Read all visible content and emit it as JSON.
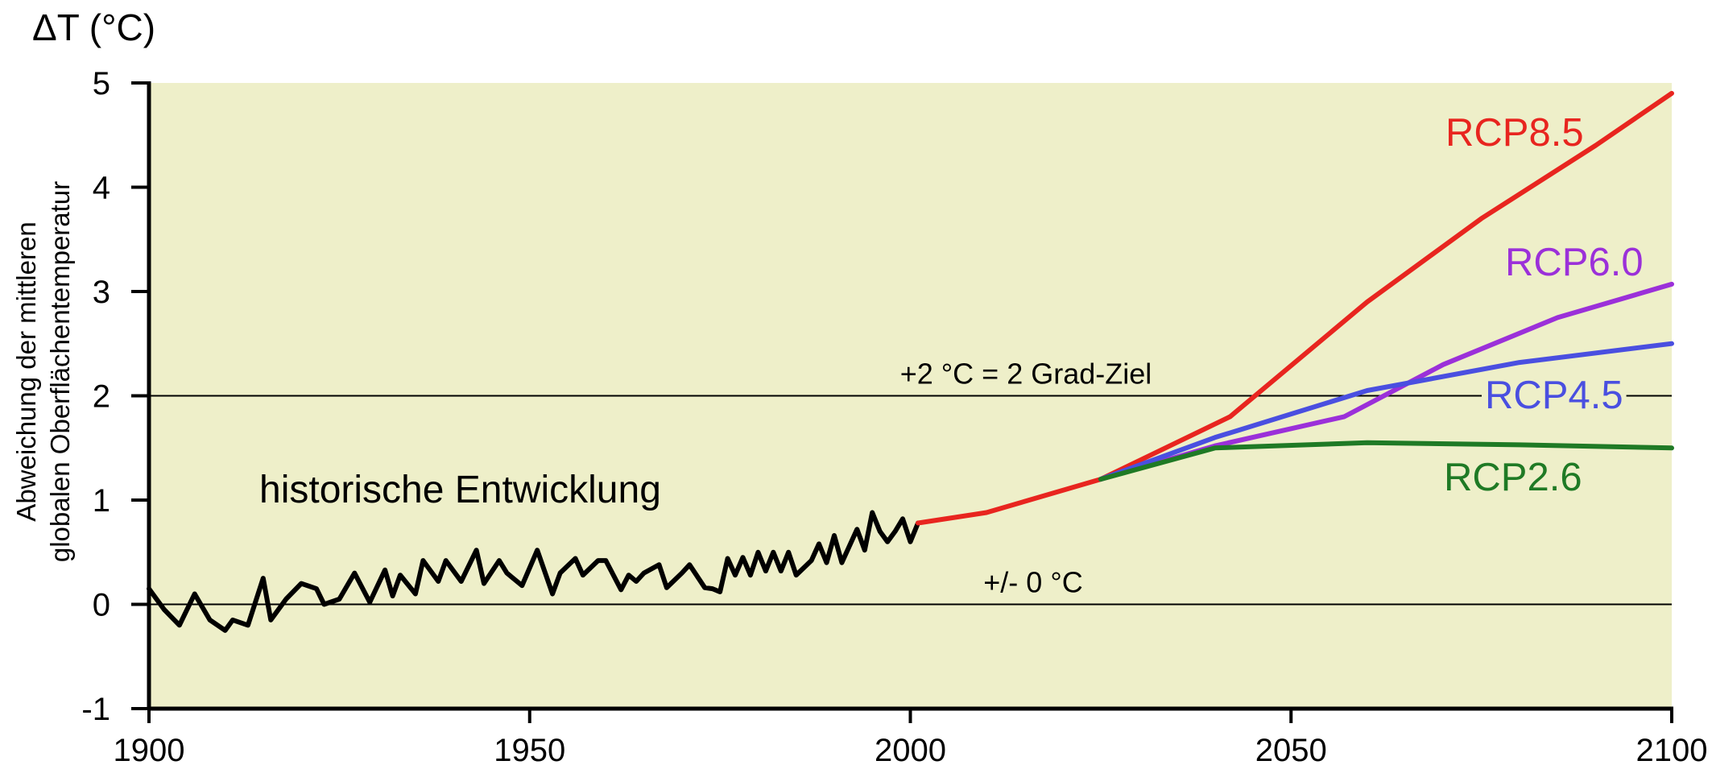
{
  "chart_data": {
    "type": "line",
    "title": "ΔT (°C)",
    "ylabel": "Abweichung der mittleren\nglobalen Oberflächentemperatur",
    "xlabel": "",
    "xlim": [
      1900,
      2100
    ],
    "ylim": [
      -1,
      5
    ],
    "x_ticks": [
      "1900",
      "1950",
      "2000",
      "2050",
      "2100"
    ],
    "y_ticks": [
      "5",
      "4",
      "3",
      "2",
      "1",
      "0",
      "-1"
    ],
    "plot_background": "#EEEFC9",
    "reference_lines": [
      {
        "y": 2,
        "label": "+2 °C = 2 Grad-Ziel"
      },
      {
        "y": 0,
        "label": "+/- 0 °C"
      }
    ],
    "annotations": [
      {
        "text": "historische Entwicklung"
      }
    ],
    "series": [
      {
        "id": "historical",
        "color": "#000000",
        "x": [
          1900,
          1902,
          1904,
          1906,
          1908,
          1910,
          1911,
          1913,
          1915,
          1916,
          1918,
          1920,
          1922,
          1923,
          1925,
          1927,
          1929,
          1931,
          1932,
          1933,
          1935,
          1936,
          1938,
          1939,
          1941,
          1943,
          1944,
          1946,
          1947,
          1949,
          1951,
          1953,
          1954,
          1956,
          1957,
          1959,
          1960,
          1962,
          1963,
          1964,
          1965,
          1967,
          1968,
          1970,
          1971,
          1973,
          1974,
          1975,
          1976,
          1977,
          1978,
          1979,
          1980,
          1981,
          1982,
          1983,
          1984,
          1985,
          1987,
          1988,
          1989,
          1990,
          1991,
          1993,
          1994,
          1995,
          1996,
          1997,
          1998,
          1999,
          2000,
          2001
        ],
        "y": [
          0.15,
          -0.05,
          -0.2,
          0.1,
          -0.15,
          -0.25,
          -0.15,
          -0.2,
          0.25,
          -0.15,
          0.05,
          0.2,
          0.15,
          0.0,
          0.05,
          0.3,
          0.02,
          0.33,
          0.08,
          0.28,
          0.1,
          0.42,
          0.22,
          0.42,
          0.22,
          0.52,
          0.2,
          0.42,
          0.3,
          0.18,
          0.52,
          0.1,
          0.3,
          0.44,
          0.28,
          0.42,
          0.42,
          0.14,
          0.28,
          0.22,
          0.3,
          0.38,
          0.16,
          0.3,
          0.38,
          0.16,
          0.15,
          0.12,
          0.44,
          0.28,
          0.45,
          0.28,
          0.5,
          0.32,
          0.5,
          0.32,
          0.5,
          0.28,
          0.42,
          0.58,
          0.4,
          0.66,
          0.4,
          0.72,
          0.52,
          0.88,
          0.7,
          0.6,
          0.7,
          0.82,
          0.6,
          0.78
        ]
      },
      {
        "id": "common",
        "color": "#E8251F",
        "x": [
          2001,
          2010,
          2025
        ],
        "y": [
          0.78,
          0.88,
          1.2
        ]
      },
      {
        "name": "RCP8.5",
        "color": "#E8251F",
        "x": [
          2025,
          2042,
          2060,
          2075,
          2090,
          2100
        ],
        "y": [
          1.2,
          1.8,
          2.9,
          3.7,
          4.4,
          4.9
        ]
      },
      {
        "name": "RCP6.0",
        "color": "#9B30D9",
        "x": [
          2025,
          2040,
          2057,
          2070,
          2085,
          2100
        ],
        "y": [
          1.2,
          1.52,
          1.8,
          2.3,
          2.75,
          3.07
        ]
      },
      {
        "name": "RCP4.5",
        "color": "#4A4FE0",
        "x": [
          2025,
          2040,
          2060,
          2080,
          2100
        ],
        "y": [
          1.2,
          1.6,
          2.05,
          2.32,
          2.5
        ]
      },
      {
        "name": "RCP2.6",
        "color": "#1F7A25",
        "x": [
          2025,
          2040,
          2060,
          2080,
          2100
        ],
        "y": [
          1.2,
          1.5,
          1.55,
          1.53,
          1.5
        ]
      }
    ]
  }
}
